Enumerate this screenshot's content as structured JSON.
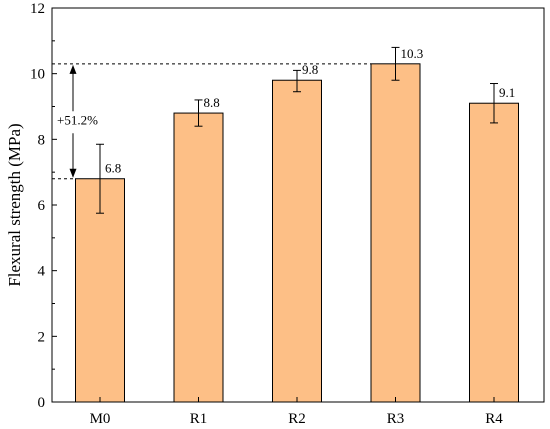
{
  "chart_data": {
    "type": "bar",
    "title": "",
    "xlabel": "",
    "ylabel": "Flexural strength (MPa)",
    "ylim": [
      0,
      12
    ],
    "yticks": [
      0,
      2,
      4,
      6,
      8,
      10,
      12
    ],
    "grid": false,
    "categories": [
      "M0",
      "R1",
      "R2",
      "R3",
      "R4"
    ],
    "values": [
      6.8,
      8.8,
      9.8,
      10.3,
      9.1
    ],
    "value_labels": [
      "6.8",
      "8.8",
      "9.8",
      "10.3",
      "9.1"
    ],
    "error_low": [
      5.75,
      8.4,
      9.45,
      9.8,
      8.5
    ],
    "error_high": [
      7.85,
      9.2,
      10.1,
      10.8,
      9.7
    ],
    "bar_color": "#FDBF86",
    "edge_color": "#000000",
    "annotation": {
      "text": "+51.2%",
      "from_value": 6.8,
      "to_value": 10.3
    }
  }
}
